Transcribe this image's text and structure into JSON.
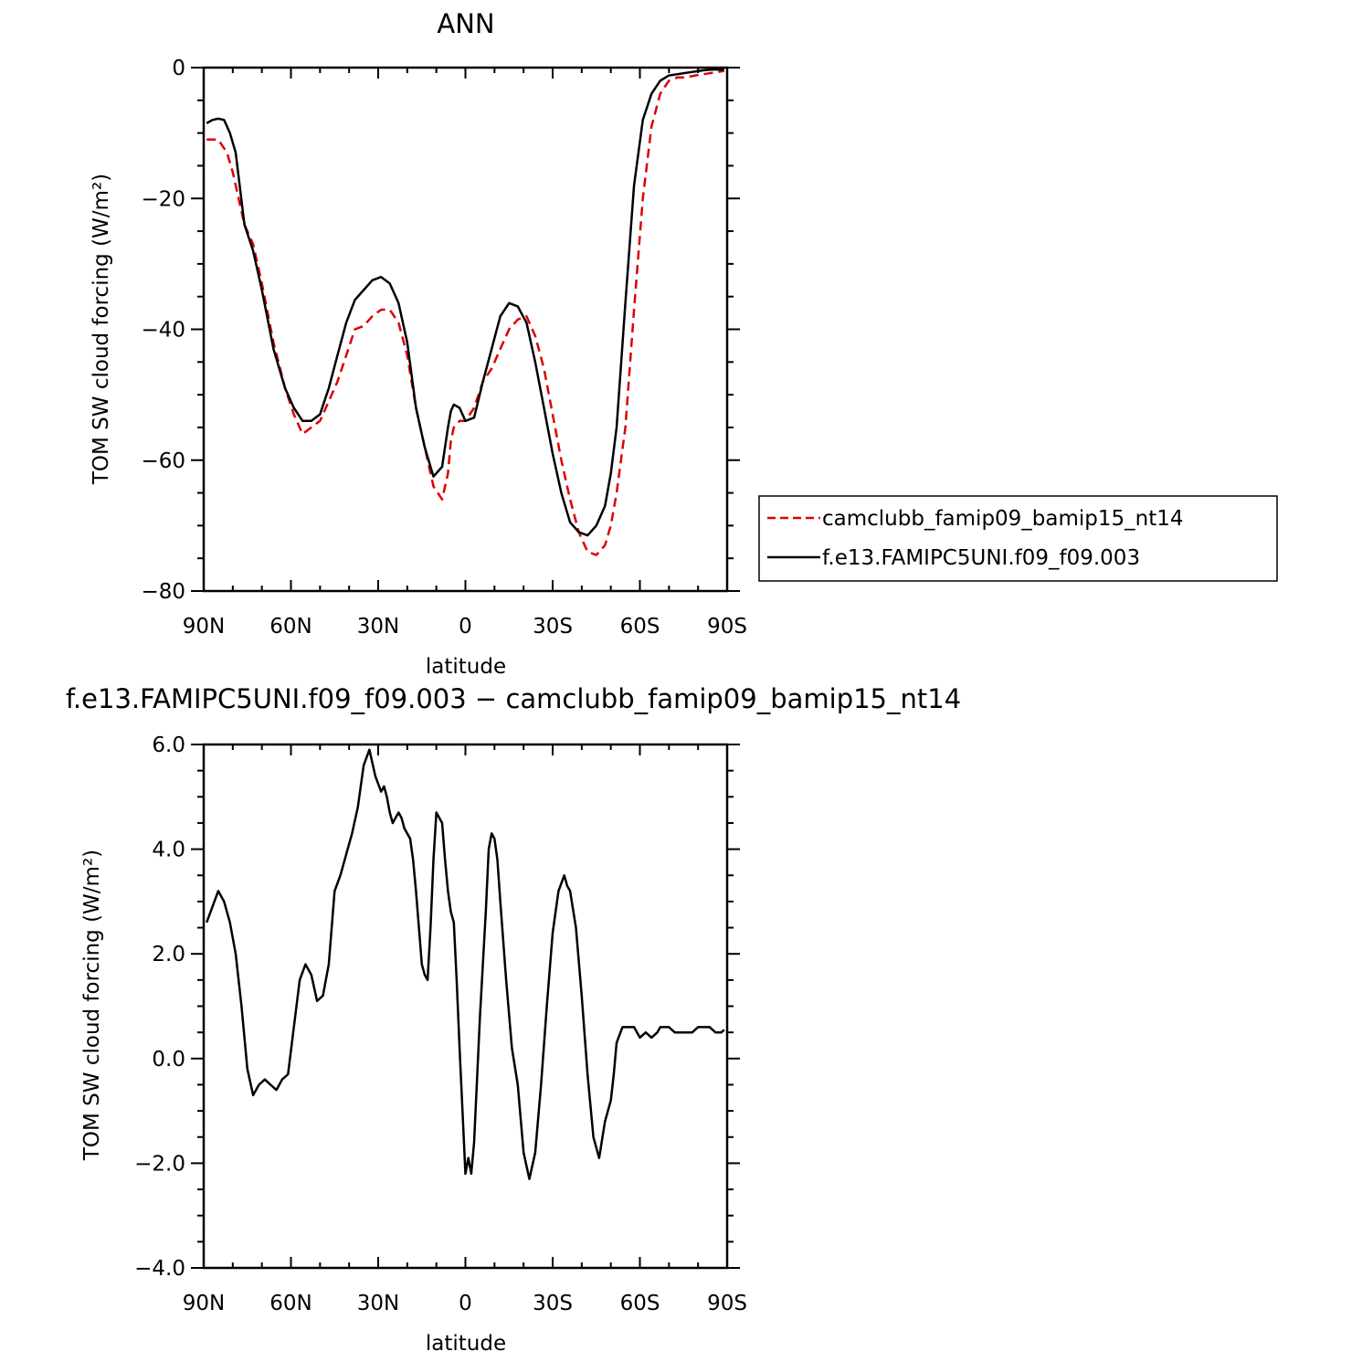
{
  "colors": {
    "model": "#000000",
    "reference": "#dd0000",
    "background": "#ffffff",
    "axis": "#000000"
  },
  "chart_data": [
    {
      "type": "line",
      "title": "ANN",
      "xlabel": "latitude",
      "ylabel": "TOM SW cloud forcing (W/m²)",
      "xlim": [
        90,
        -90
      ],
      "ylim": [
        -80,
        0
      ],
      "x_tick_values": [
        90,
        60,
        30,
        0,
        -30,
        -60,
        -90
      ],
      "x_tick_labels": [
        "90N",
        "60N",
        "30N",
        "0",
        "30S",
        "60S",
        "90S"
      ],
      "y_tick_values": [
        0,
        -20,
        -40,
        -60,
        -80
      ],
      "y_tick_labels": [
        "0",
        "−20",
        "−40",
        "−60",
        "−80"
      ],
      "legend_position": "right",
      "series": [
        {
          "name": "camclubb_famip09_bamip15_nt14",
          "style": "dashed",
          "color": "#dd0000",
          "x": [
            89,
            85,
            82,
            80,
            76,
            73,
            70,
            66,
            62,
            59,
            56,
            53,
            50,
            47,
            44,
            41,
            38,
            35,
            32,
            29,
            26,
            23,
            20,
            17,
            14,
            11,
            8,
            6,
            5,
            4,
            2,
            0,
            -3,
            -6,
            -9,
            -12,
            -15,
            -18,
            -21,
            -24,
            -27,
            -30,
            -33,
            -36,
            -39,
            -42,
            -45,
            -48,
            -50,
            -52,
            -55,
            -58,
            -61,
            -64,
            -67,
            -70,
            -73,
            -76,
            -79,
            -82,
            -85,
            -89
          ],
          "y": [
            -11,
            -11,
            -13,
            -16,
            -24,
            -27,
            -33,
            -42,
            -49,
            -53,
            -56,
            -55,
            -54,
            -51,
            -48,
            -44,
            -40,
            -39.5,
            -38,
            -37,
            -37,
            -39,
            -44,
            -52,
            -58,
            -64,
            -66,
            -62,
            -57,
            -55,
            -54,
            -54,
            -52,
            -48,
            -46,
            -43,
            -40,
            -38.5,
            -38,
            -41,
            -46,
            -53,
            -60,
            -66,
            -71,
            -74,
            -74.5,
            -73,
            -70,
            -65,
            -55,
            -37,
            -20,
            -9,
            -4,
            -2,
            -1.5,
            -1.5,
            -1.2,
            -1,
            -0.8,
            -0.5
          ]
        },
        {
          "name": "f.e13.FAMIPC5UNI.f09_f09.003",
          "style": "solid",
          "color": "#000000",
          "x": [
            89,
            87,
            85,
            83,
            81,
            79,
            76,
            73,
            70,
            66,
            62,
            59,
            56,
            53,
            50,
            47,
            44,
            41,
            38,
            35,
            32,
            29,
            26,
            23,
            20,
            17,
            14,
            11,
            8,
            6,
            5,
            4,
            2,
            0,
            -3,
            -6,
            -9,
            -12,
            -15,
            -18,
            -21,
            -24,
            -27,
            -30,
            -33,
            -36,
            -39,
            -42,
            -45,
            -48,
            -50,
            -52,
            -55,
            -58,
            -61,
            -64,
            -67,
            -70,
            -73,
            -76,
            -79,
            -82,
            -85,
            -89
          ],
          "y": [
            -8.5,
            -8,
            -7.8,
            -8,
            -10,
            -13,
            -24,
            -28,
            -34,
            -43,
            -49,
            -52,
            -54,
            -54,
            -53,
            -49,
            -44,
            -39,
            -35.5,
            -34,
            -32.5,
            -32,
            -33,
            -36,
            -42,
            -52,
            -58,
            -62.5,
            -61,
            -55,
            -52.5,
            -51.5,
            -52,
            -54,
            -53.5,
            -48,
            -43,
            -38,
            -36,
            -36.5,
            -39,
            -45,
            -52,
            -59,
            -65,
            -69.5,
            -71,
            -71.5,
            -70,
            -67,
            -62,
            -55,
            -36,
            -18,
            -8,
            -4,
            -2,
            -1.2,
            -1,
            -0.8,
            -0.6,
            -0.4,
            -0.3,
            -0.3
          ]
        }
      ]
    },
    {
      "type": "line",
      "title": "f.e13.FAMIPC5UNI.f09_f09.003 − camclubb_famip09_bamip15_nt14",
      "xlabel": "latitude",
      "ylabel": "TOM SW cloud forcing (W/m²)",
      "xlim": [
        90,
        -90
      ],
      "ylim": [
        -4,
        6
      ],
      "x_tick_values": [
        90,
        60,
        30,
        0,
        -30,
        -60,
        -90
      ],
      "x_tick_labels": [
        "90N",
        "60N",
        "30N",
        "0",
        "30S",
        "60S",
        "90S"
      ],
      "y_tick_values": [
        6,
        4,
        2,
        0,
        -2,
        -4
      ],
      "y_tick_labels": [
        "6.0",
        "4.0",
        "2.0",
        "0.0",
        "−2.0",
        "−4.0"
      ],
      "series": [
        {
          "style": "solid",
          "color": "#000000",
          "x": [
            89,
            87,
            85,
            83,
            81,
            79,
            77,
            75,
            73,
            71,
            69,
            67,
            65,
            63,
            61,
            59,
            57,
            55,
            53,
            51,
            49,
            47,
            45,
            43,
            41,
            39,
            37,
            35,
            33,
            31,
            29,
            28,
            27,
            26,
            25,
            24,
            23,
            22,
            21,
            20,
            19,
            18,
            17,
            16,
            15,
            14,
            13,
            12,
            11,
            10,
            8,
            7,
            6,
            5,
            4,
            3,
            2,
            1,
            0,
            -1,
            -2,
            -3,
            -5,
            -7,
            -8,
            -9,
            -10,
            -11,
            -12,
            -14,
            -16,
            -18,
            -20,
            -22,
            -24,
            -26,
            -28,
            -30,
            -32,
            -34,
            -35,
            -36,
            -38,
            -40,
            -42,
            -44,
            -46,
            -48,
            -50,
            -51,
            -52,
            -54,
            -56,
            -58,
            -60,
            -62,
            -64,
            -66,
            -67,
            -68,
            -70,
            -72,
            -74,
            -76,
            -78,
            -80,
            -82,
            -84,
            -86,
            -88,
            -89
          ],
          "y": [
            2.6,
            2.9,
            3.2,
            3.0,
            2.6,
            2.0,
            1.0,
            -0.2,
            -0.7,
            -0.5,
            -0.4,
            -0.5,
            -0.6,
            -0.4,
            -0.3,
            0.6,
            1.5,
            1.8,
            1.6,
            1.1,
            1.2,
            1.8,
            3.2,
            3.5,
            3.9,
            4.3,
            4.8,
            5.6,
            5.9,
            5.4,
            5.1,
            5.2,
            5.0,
            4.7,
            4.5,
            4.6,
            4.7,
            4.6,
            4.4,
            4.3,
            4.2,
            3.8,
            3.2,
            2.5,
            1.8,
            1.6,
            1.5,
            2.5,
            3.8,
            4.7,
            4.5,
            3.8,
            3.2,
            2.8,
            2.6,
            1.5,
            0.2,
            -1.0,
            -2.2,
            -1.9,
            -2.2,
            -1.6,
            0.8,
            2.8,
            4.0,
            4.3,
            4.2,
            3.8,
            3.0,
            1.5,
            0.2,
            -0.5,
            -1.8,
            -2.3,
            -1.8,
            -0.5,
            1.0,
            2.4,
            3.2,
            3.5,
            3.3,
            3.2,
            2.5,
            1.2,
            -0.3,
            -1.5,
            -1.9,
            -1.2,
            -0.8,
            -0.3,
            0.3,
            0.6,
            0.6,
            0.6,
            0.4,
            0.5,
            0.4,
            0.5,
            0.6,
            0.6,
            0.6,
            0.5,
            0.5,
            0.5,
            0.5,
            0.6,
            0.6,
            0.6,
            0.5,
            0.5,
            0.55
          ]
        }
      ]
    }
  ]
}
